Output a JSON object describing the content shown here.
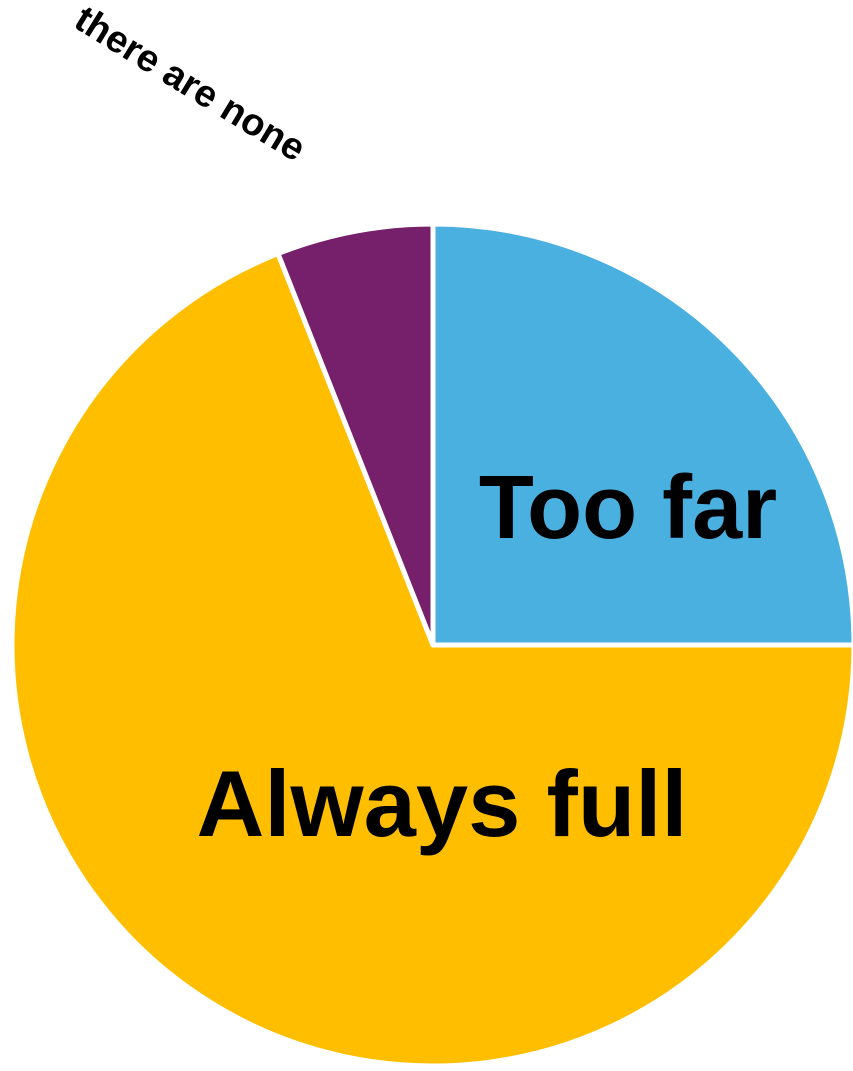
{
  "chart_data": {
    "type": "pie",
    "slices": [
      {
        "label": "Too far",
        "value": 25,
        "color": "#4AB0E0"
      },
      {
        "label": "Always full",
        "value": 69,
        "color": "#FFBF00"
      },
      {
        "label": "there are none",
        "value": 6,
        "color": "#76206B"
      }
    ],
    "start": "12 o'clock",
    "direction": "clockwise",
    "legend": "none",
    "labels": "on-slice"
  }
}
